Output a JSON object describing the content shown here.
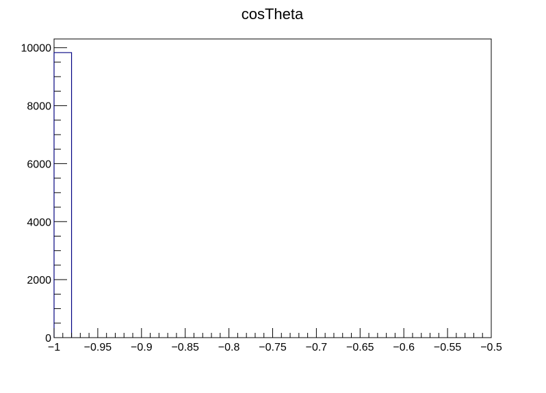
{
  "chart_data": {
    "type": "bar",
    "title": "cosTheta",
    "xlabel": "",
    "ylabel": "",
    "xlim": [
      -1,
      -0.5
    ],
    "ylim": [
      0,
      10300
    ],
    "x_ticks": [
      {
        "value": -1,
        "label": "−1"
      },
      {
        "value": -0.95,
        "label": "−0.95"
      },
      {
        "value": -0.9,
        "label": "−0.9"
      },
      {
        "value": -0.85,
        "label": "−0.85"
      },
      {
        "value": -0.8,
        "label": "−0.8"
      },
      {
        "value": -0.75,
        "label": "−0.75"
      },
      {
        "value": -0.7,
        "label": "−0.7"
      },
      {
        "value": -0.65,
        "label": "−0.65"
      },
      {
        "value": -0.6,
        "label": "−0.6"
      },
      {
        "value": -0.55,
        "label": "−0.55"
      },
      {
        "value": -0.5,
        "label": "−0.5"
      }
    ],
    "y_ticks": [
      {
        "value": 0,
        "label": "0"
      },
      {
        "value": 2000,
        "label": "2000"
      },
      {
        "value": 4000,
        "label": "4000"
      },
      {
        "value": 6000,
        "label": "6000"
      },
      {
        "value": 8000,
        "label": "8000"
      },
      {
        "value": 10000,
        "label": "10000"
      }
    ],
    "bins": [
      {
        "x_low": -1.0,
        "x_high": -0.98,
        "value": 9830
      }
    ],
    "line_color": "#000080",
    "grid": false
  }
}
